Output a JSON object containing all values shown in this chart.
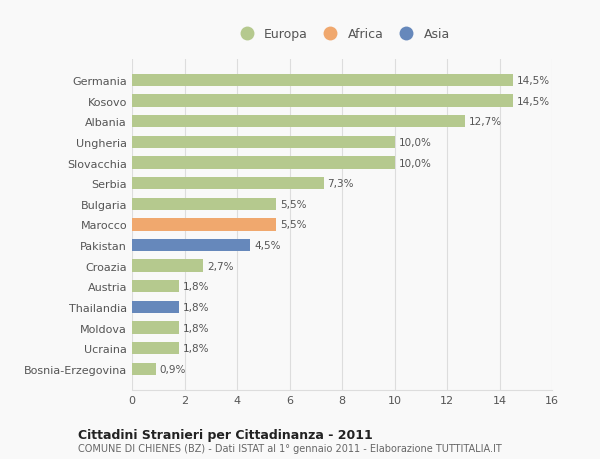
{
  "countries": [
    "Germania",
    "Kosovo",
    "Albania",
    "Ungheria",
    "Slovacchia",
    "Serbia",
    "Bulgaria",
    "Marocco",
    "Pakistan",
    "Croazia",
    "Austria",
    "Thailandia",
    "Moldova",
    "Ucraina",
    "Bosnia-Erzegovina"
  ],
  "values": [
    14.5,
    14.5,
    12.7,
    10.0,
    10.0,
    7.3,
    5.5,
    5.5,
    4.5,
    2.7,
    1.8,
    1.8,
    1.8,
    1.8,
    0.9
  ],
  "labels": [
    "14,5%",
    "14,5%",
    "12,7%",
    "10,0%",
    "10,0%",
    "7,3%",
    "5,5%",
    "5,5%",
    "4,5%",
    "2,7%",
    "1,8%",
    "1,8%",
    "1,8%",
    "1,8%",
    "0,9%"
  ],
  "categories": [
    "Europa",
    "Europa",
    "Europa",
    "Europa",
    "Europa",
    "Europa",
    "Europa",
    "Africa",
    "Asia",
    "Europa",
    "Europa",
    "Asia",
    "Europa",
    "Europa",
    "Europa"
  ],
  "color_europa": "#b5c98e",
  "color_africa": "#f0a86e",
  "color_asia": "#6688bb",
  "background_color": "#f9f9f9",
  "title1": "Cittadini Stranieri per Cittadinanza - 2011",
  "title2": "COMUNE DI CHIENES (BZ) - Dati ISTAT al 1° gennaio 2011 - Elaborazione TUTTITALIA.IT",
  "xlim": [
    0,
    16
  ],
  "xticks": [
    0,
    2,
    4,
    6,
    8,
    10,
    12,
    14,
    16
  ]
}
